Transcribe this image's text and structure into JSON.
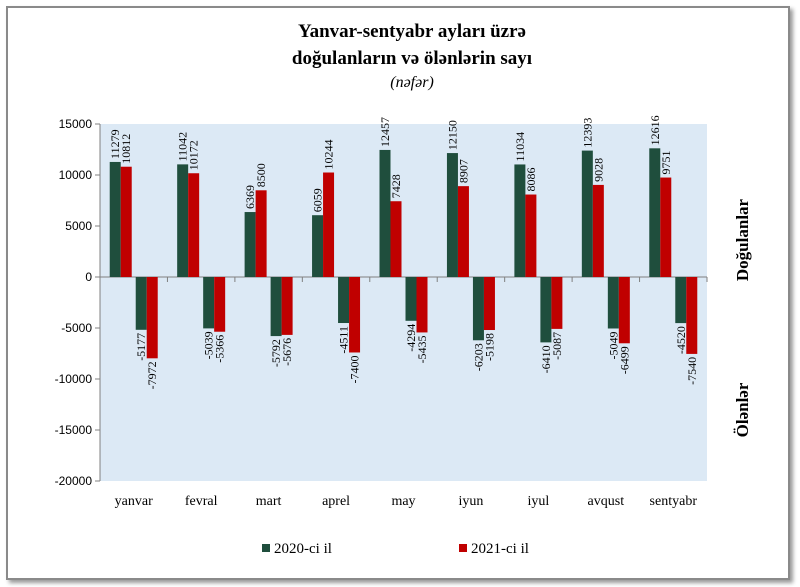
{
  "chart_data": {
    "type": "bar",
    "title_lines": [
      "Yanvar-sentyabr ayları üzrə",
      "doğulanların və ölənlərin sayı"
    ],
    "subtitle": "(nəfər)",
    "categories": [
      "yanvar",
      "fevral",
      "mart",
      "aprel",
      "may",
      "iyun",
      "iyul",
      "avqust",
      "sentyabr"
    ],
    "series": [
      {
        "name": "2020-ci il",
        "color": "#1f4e3d",
        "births": [
          11279,
          11042,
          6369,
          6059,
          12457,
          12150,
          11034,
          12393,
          12616
        ],
        "deaths": [
          -5177,
          -5039,
          -5792,
          -4511,
          -4294,
          -6203,
          -6410,
          -5049,
          -4520
        ]
      },
      {
        "name": "2021-ci il",
        "color": "#c00000",
        "births": [
          10812,
          10172,
          8500,
          10244,
          7428,
          8907,
          8086,
          9028,
          9751
        ],
        "deaths": [
          -7972,
          -5366,
          -5676,
          -7400,
          -5435,
          -5198,
          -5087,
          -6499,
          -7540
        ]
      }
    ],
    "y_ticks": [
      "15000",
      "10000",
      "5000",
      "0",
      "-5000",
      "-10000",
      "-15000",
      "-20000"
    ],
    "ylim": [
      -20000,
      15000
    ],
    "side_labels": {
      "top": "Doğulanlar",
      "bottom": "Ölənlər"
    },
    "plot_background": "#dce9f5",
    "legend_position": "bottom"
  }
}
